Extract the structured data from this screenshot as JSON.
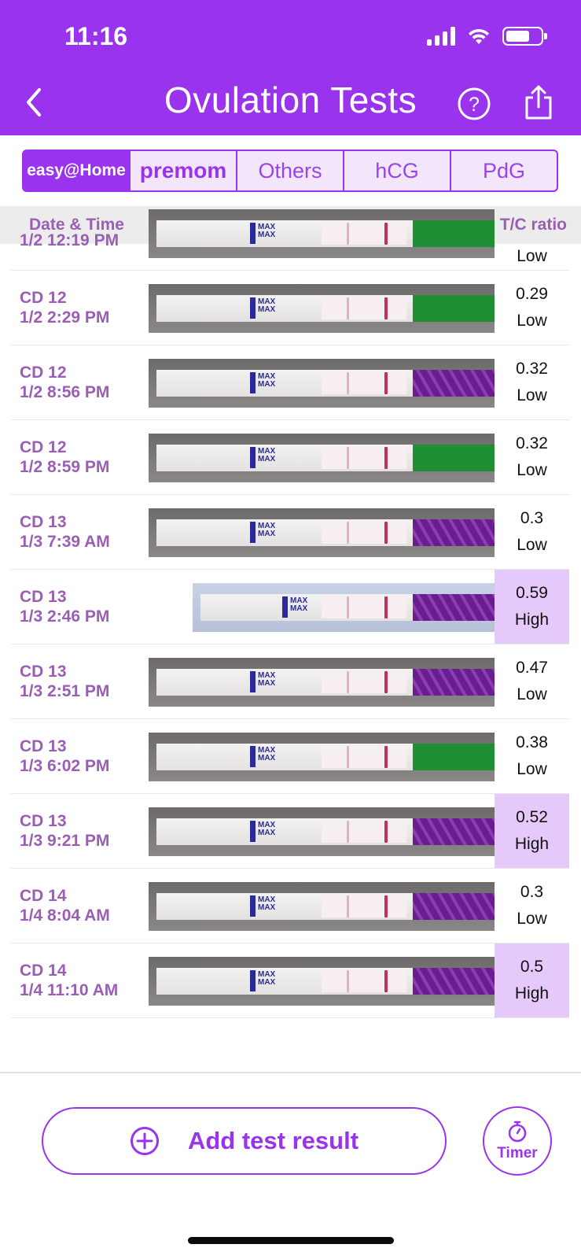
{
  "status_bar": {
    "time": "11:16"
  },
  "header": {
    "title": "Ovulation Tests",
    "back_icon": "chevron-left-icon",
    "help_icon": "question-circle-icon",
    "share_icon": "share-icon",
    "background": "#9933ee"
  },
  "brand_tabs": [
    {
      "label": "easy@Home",
      "active": true
    },
    {
      "label": "premom",
      "active": false
    },
    {
      "label": "Others",
      "active": false
    },
    {
      "label": "hCG",
      "active": false
    },
    {
      "label": "PdG",
      "active": false
    }
  ],
  "columns": {
    "date": "Date & Time",
    "ratio": "T/C ratio"
  },
  "rows": [
    {
      "cd": "",
      "time": "1/2 12:19 PM",
      "ratio": "",
      "level": "Low",
      "high": false,
      "handle": "green"
    },
    {
      "cd": "CD 12",
      "time": "1/2 2:29 PM",
      "ratio": "0.29",
      "level": "Low",
      "high": false,
      "handle": "green"
    },
    {
      "cd": "CD 12",
      "time": "1/2 8:56 PM",
      "ratio": "0.32",
      "level": "Low",
      "high": false,
      "handle": "purple"
    },
    {
      "cd": "CD 12",
      "time": "1/2 8:59 PM",
      "ratio": "0.32",
      "level": "Low",
      "high": false,
      "handle": "green"
    },
    {
      "cd": "CD 13",
      "time": "1/3 7:39 AM",
      "ratio": "0.3",
      "level": "Low",
      "high": false,
      "handle": "purple"
    },
    {
      "cd": "CD 13",
      "time": "1/3 2:46 PM",
      "ratio": "0.59",
      "level": "High",
      "high": true,
      "handle": "purple"
    },
    {
      "cd": "CD 13",
      "time": "1/3 2:51 PM",
      "ratio": "0.47",
      "level": "Low",
      "high": false,
      "handle": "purple"
    },
    {
      "cd": "CD 13",
      "time": "1/3 6:02 PM",
      "ratio": "0.38",
      "level": "Low",
      "high": false,
      "handle": "green"
    },
    {
      "cd": "CD 13",
      "time": "1/3 9:21 PM",
      "ratio": "0.52",
      "level": "High",
      "high": true,
      "handle": "purple"
    },
    {
      "cd": "CD 14",
      "time": "1/4 8:04 AM",
      "ratio": "0.3",
      "level": "Low",
      "high": false,
      "handle": "purple"
    },
    {
      "cd": "CD 14",
      "time": "1/4 11:10 AM",
      "ratio": "0.5",
      "level": "High",
      "high": true,
      "handle": "purple"
    }
  ],
  "strip_label": "MAX",
  "actions": {
    "add_label": "Add test result",
    "timer_label": "Timer"
  },
  "colors": {
    "accent": "#9933ee",
    "high_bg": "#e6c9fb",
    "date_text": "#9a5fb5"
  }
}
